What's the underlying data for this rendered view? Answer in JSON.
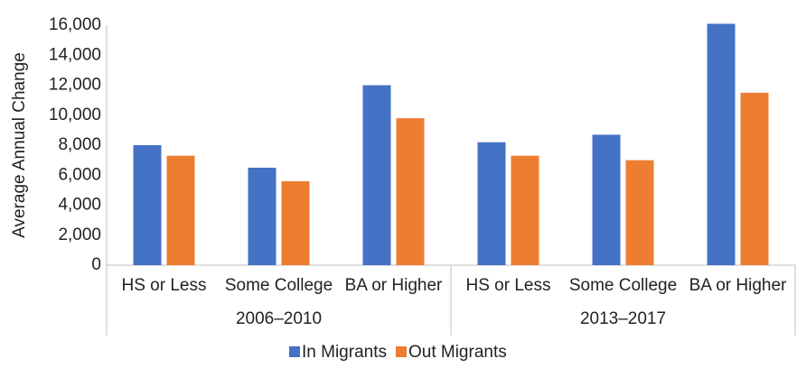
{
  "chart_data": {
    "type": "bar",
    "y_label": "Average Annual Change",
    "categories": [
      "HS or Less",
      "Some College",
      "BA or Higher",
      "HS or Less",
      "Some College",
      "BA or Higher"
    ],
    "groups": [
      "2006–2010",
      "2013–2017"
    ],
    "series": [
      {
        "name": "In Migrants",
        "color": "#4472c4",
        "values": [
          8000,
          6500,
          12000,
          8200,
          8700,
          16100
        ]
      },
      {
        "name": "Out Migrants",
        "color": "#ed7d31",
        "values": [
          7300,
          5600,
          9800,
          7300,
          7000,
          11500
        ]
      }
    ],
    "ylim": [
      0,
      16000
    ],
    "yticks": [
      0,
      {
        "value": 2000,
        "label": "2,000"
      },
      {
        "value": 4000,
        "label": "4,000"
      },
      {
        "value": 6000,
        "label": "6,000"
      },
      {
        "value": 8000,
        "label": "8,000"
      },
      {
        "value": 10000,
        "label": "10,000"
      },
      {
        "value": 12000,
        "label": "12,000"
      },
      {
        "value": 14000,
        "label": "14,000"
      },
      {
        "value": 16000,
        "label": "16,000"
      }
    ],
    "grid": false,
    "legend": "bottom"
  }
}
